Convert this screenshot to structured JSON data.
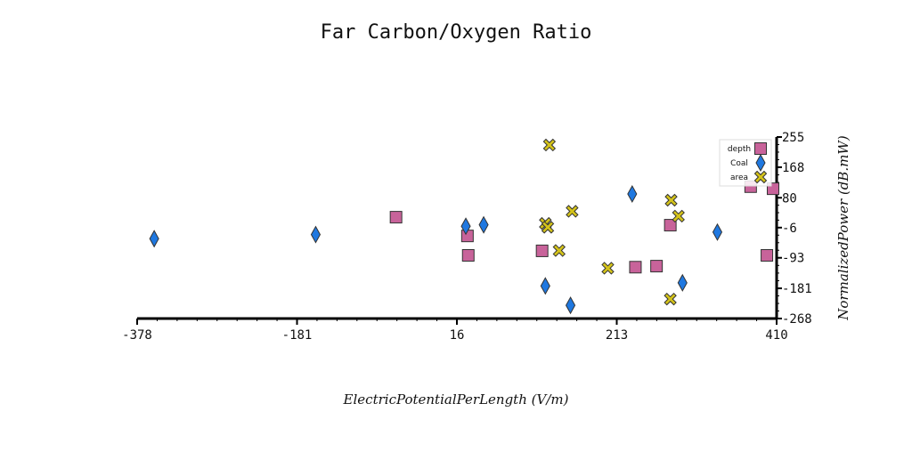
{
  "chart_data": {
    "type": "scatter",
    "title": "Far Carbon/Oxygen Ratio",
    "xlabel": "ElectricPotentialPerLength (V/m)",
    "ylabel": "NormalizedPower (dB.mW)",
    "xlim": [
      -378,
      410
    ],
    "ylim": [
      -268,
      255
    ],
    "x_ticks": [
      -378,
      -181,
      16,
      213,
      410
    ],
    "y_ticks": [
      255,
      168,
      80,
      -6,
      -93,
      -181,
      -268
    ],
    "grid": false,
    "y_axis_side": "right",
    "legend_position": "top-right",
    "series": [
      {
        "name": "depth",
        "marker": "square",
        "color": "#c8639a",
        "x": [
          -59,
          29,
          30,
          121,
          458,
          236,
          262,
          279,
          378,
          398
        ],
        "y": [
          24,
          -30,
          -86,
          -73,
          106,
          -120,
          -117,
          1,
          112,
          -86
        ]
      },
      {
        "name": "Coal",
        "marker": "diamond",
        "color": "#1f78e0",
        "x": [
          -357,
          -158,
          27,
          49,
          125,
          156,
          232,
          294,
          337
        ],
        "y": [
          -38,
          -26,
          -2,
          2,
          -174,
          -230,
          91,
          -165,
          -19
        ]
      },
      {
        "name": "area",
        "marker": "x",
        "color": "#d4c31a",
        "x": [
          130,
          125,
          128,
          142,
          158,
          202,
          280,
          289,
          279
        ],
        "y": [
          232,
          6,
          -5,
          -72,
          41,
          -123,
          73,
          27,
          -212
        ]
      }
    ]
  }
}
